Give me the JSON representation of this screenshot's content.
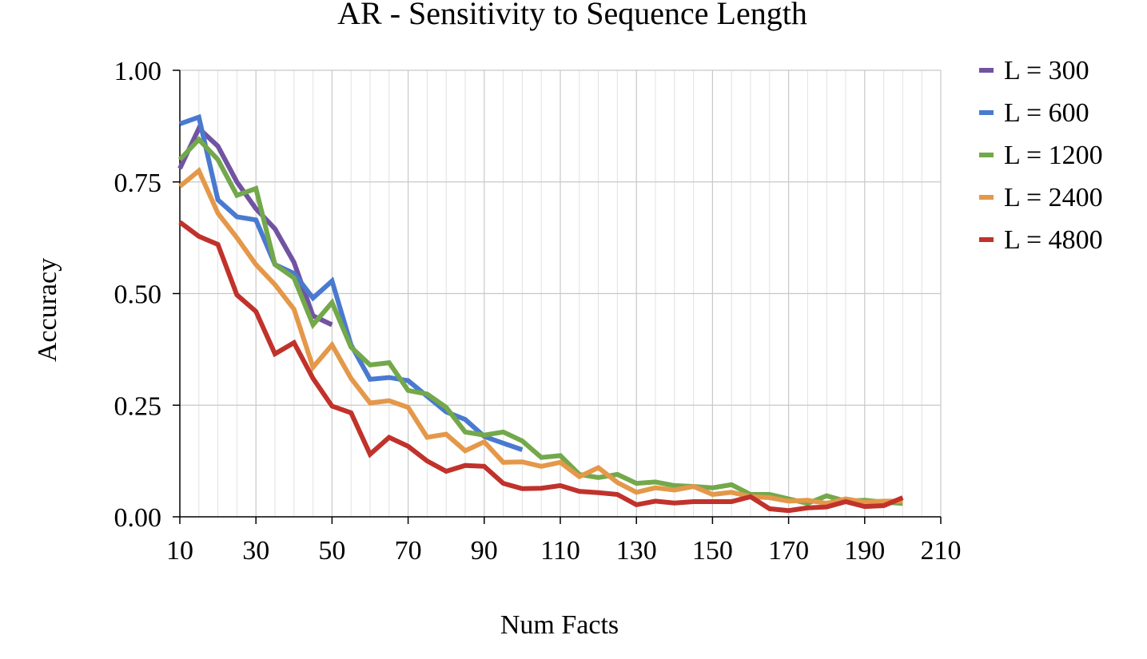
{
  "chart_data": {
    "type": "line",
    "title": "AR - Sensitivity to Sequence Length",
    "xlabel": "Num Facts",
    "ylabel": "Accuracy",
    "xlim": [
      10,
      210
    ],
    "ylim": [
      0,
      1
    ],
    "x_ticks": [
      "10",
      "30",
      "50",
      "70",
      "90",
      "110",
      "130",
      "150",
      "170",
      "190",
      "210"
    ],
    "y_ticks": [
      "0.00",
      "0.25",
      "0.50",
      "0.75",
      "1.00"
    ],
    "grid": true,
    "legend_position": "right",
    "series": [
      {
        "name": "L = 300",
        "color": "#7153a2",
        "x": [
          10,
          15,
          20,
          25,
          30,
          35,
          40,
          45,
          50
        ],
        "y": [
          0.78,
          0.87,
          0.83,
          0.75,
          0.69,
          0.645,
          0.57,
          0.45,
          0.43
        ]
      },
      {
        "name": "L = 600",
        "color": "#4a7ad0",
        "x": [
          10,
          15,
          20,
          25,
          30,
          35,
          40,
          45,
          50,
          55,
          60,
          65,
          70,
          75,
          80,
          85,
          90,
          95,
          100
        ],
        "y": [
          0.88,
          0.895,
          0.71,
          0.672,
          0.665,
          0.565,
          0.545,
          0.49,
          0.528,
          0.385,
          0.308,
          0.312,
          0.305,
          0.27,
          0.235,
          0.218,
          0.18,
          0.165,
          0.15
        ]
      },
      {
        "name": "L = 1200",
        "color": "#73a84b",
        "x": [
          10,
          15,
          20,
          25,
          30,
          35,
          40,
          45,
          50,
          55,
          60,
          65,
          70,
          75,
          80,
          85,
          90,
          95,
          100,
          105,
          110,
          115,
          120,
          125,
          130,
          135,
          140,
          145,
          150,
          155,
          160,
          165,
          170,
          175,
          180,
          185,
          190,
          195,
          200
        ],
        "y": [
          0.8,
          0.845,
          0.8,
          0.72,
          0.735,
          0.565,
          0.535,
          0.43,
          0.48,
          0.38,
          0.34,
          0.345,
          0.283,
          0.275,
          0.245,
          0.19,
          0.183,
          0.19,
          0.17,
          0.133,
          0.137,
          0.095,
          0.088,
          0.095,
          0.075,
          0.078,
          0.07,
          0.068,
          0.065,
          0.072,
          0.05,
          0.05,
          0.04,
          0.03,
          0.047,
          0.035,
          0.037,
          0.033,
          0.03
        ]
      },
      {
        "name": "L = 2400",
        "color": "#e4984a",
        "x": [
          10,
          15,
          20,
          25,
          30,
          35,
          40,
          45,
          50,
          55,
          60,
          65,
          70,
          75,
          80,
          85,
          90,
          95,
          100,
          105,
          110,
          115,
          120,
          125,
          130,
          135,
          140,
          145,
          150,
          155,
          160,
          165,
          170,
          175,
          180,
          185,
          190,
          195,
          200
        ],
        "y": [
          0.74,
          0.775,
          0.68,
          0.625,
          0.565,
          0.52,
          0.465,
          0.335,
          0.385,
          0.31,
          0.255,
          0.26,
          0.245,
          0.178,
          0.185,
          0.148,
          0.168,
          0.122,
          0.123,
          0.113,
          0.122,
          0.09,
          0.11,
          0.077,
          0.055,
          0.065,
          0.06,
          0.068,
          0.05,
          0.055,
          0.045,
          0.043,
          0.035,
          0.037,
          0.03,
          0.04,
          0.033,
          0.035,
          0.035
        ]
      },
      {
        "name": "L = 4800",
        "color": "#c0322b",
        "x": [
          10,
          15,
          20,
          25,
          30,
          35,
          40,
          45,
          50,
          55,
          60,
          65,
          70,
          75,
          80,
          85,
          90,
          95,
          100,
          105,
          110,
          115,
          120,
          125,
          130,
          135,
          140,
          145,
          150,
          155,
          160,
          165,
          170,
          175,
          180,
          185,
          190,
          195,
          200
        ],
        "y": [
          0.66,
          0.628,
          0.61,
          0.497,
          0.46,
          0.365,
          0.39,
          0.31,
          0.248,
          0.233,
          0.14,
          0.178,
          0.158,
          0.125,
          0.102,
          0.115,
          0.113,
          0.075,
          0.063,
          0.064,
          0.07,
          0.057,
          0.054,
          0.05,
          0.027,
          0.035,
          0.031,
          0.034,
          0.034,
          0.034,
          0.045,
          0.018,
          0.014,
          0.02,
          0.022,
          0.034,
          0.023,
          0.025,
          0.043
        ]
      }
    ]
  }
}
